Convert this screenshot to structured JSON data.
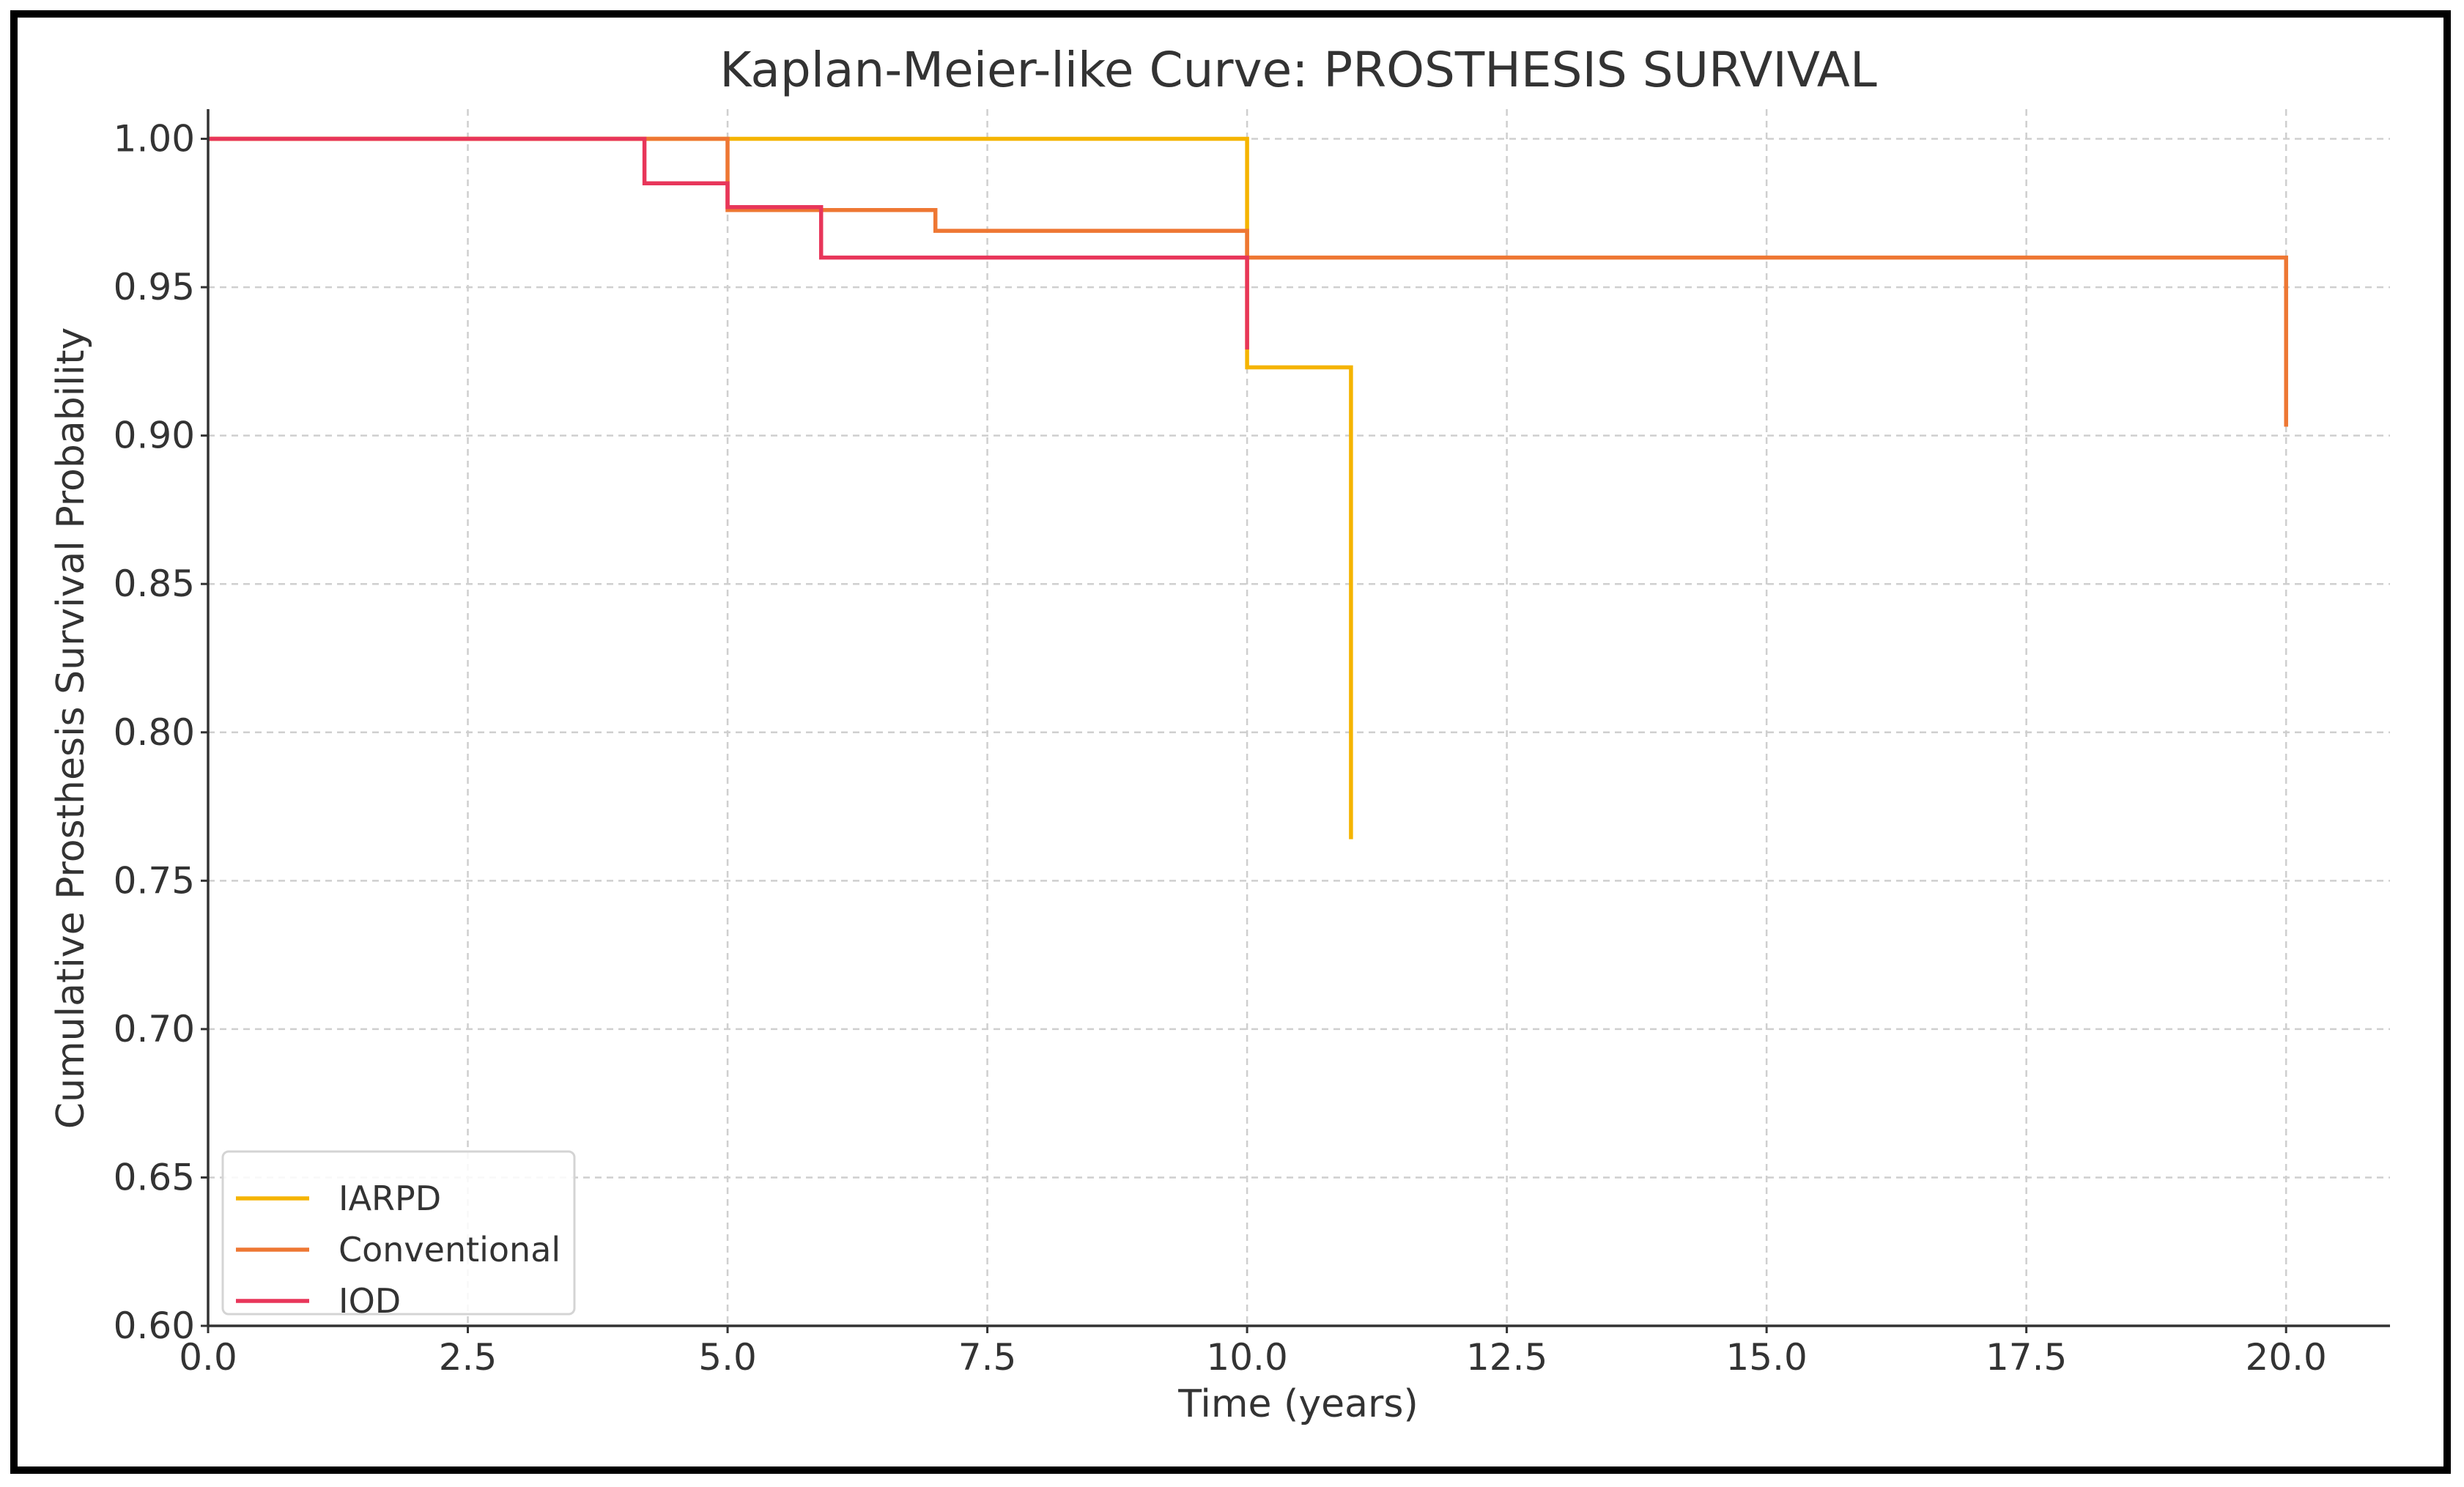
{
  "chart_data": {
    "type": "line",
    "step": true,
    "title": "Kaplan-Meier-like Curve: PROSTHESIS SURVIVAL",
    "xlabel": "Time (years)",
    "ylabel": "Cumulative Prosthesis Survival Probability",
    "xlim": [
      0,
      21
    ],
    "ylim": [
      0.6,
      1.01
    ],
    "xticks": [
      0,
      2.5,
      5,
      7.5,
      10,
      12.5,
      15,
      17.5,
      20
    ],
    "xtick_labels": [
      "0.0",
      "2.5",
      "5.0",
      "7.5",
      "10.0",
      "12.5",
      "15.0",
      "17.5",
      "20.0"
    ],
    "yticks": [
      0.6,
      0.65,
      0.7,
      0.75,
      0.8,
      0.85,
      0.9,
      0.95,
      1.0
    ],
    "ytick_labels": [
      "0.60",
      "0.65",
      "0.70",
      "0.75",
      "0.80",
      "0.85",
      "0.90",
      "0.95",
      "1.00"
    ],
    "grid": true,
    "legend_position": "bottom-left",
    "series": [
      {
        "name": "IARPD",
        "color": "#F5B400",
        "points": [
          [
            0,
            1.0
          ],
          [
            10,
            1.0
          ],
          [
            10,
            0.923
          ],
          [
            11,
            0.923
          ],
          [
            11,
            0.764
          ]
        ]
      },
      {
        "name": "Conventional",
        "color": "#EE7733",
        "points": [
          [
            0,
            1.0
          ],
          [
            5,
            1.0
          ],
          [
            5,
            0.976
          ],
          [
            7,
            0.976
          ],
          [
            7,
            0.969
          ],
          [
            10,
            0.969
          ],
          [
            10,
            0.96
          ],
          [
            20,
            0.96
          ],
          [
            20,
            0.903
          ]
        ]
      },
      {
        "name": "IOD",
        "color": "#E8365A",
        "points": [
          [
            0,
            1.0
          ],
          [
            4.2,
            1.0
          ],
          [
            4.2,
            0.985
          ],
          [
            5,
            0.985
          ],
          [
            5,
            0.977
          ],
          [
            5.9,
            0.977
          ],
          [
            5.9,
            0.96
          ],
          [
            10,
            0.96
          ],
          [
            10,
            0.929
          ]
        ]
      }
    ]
  }
}
